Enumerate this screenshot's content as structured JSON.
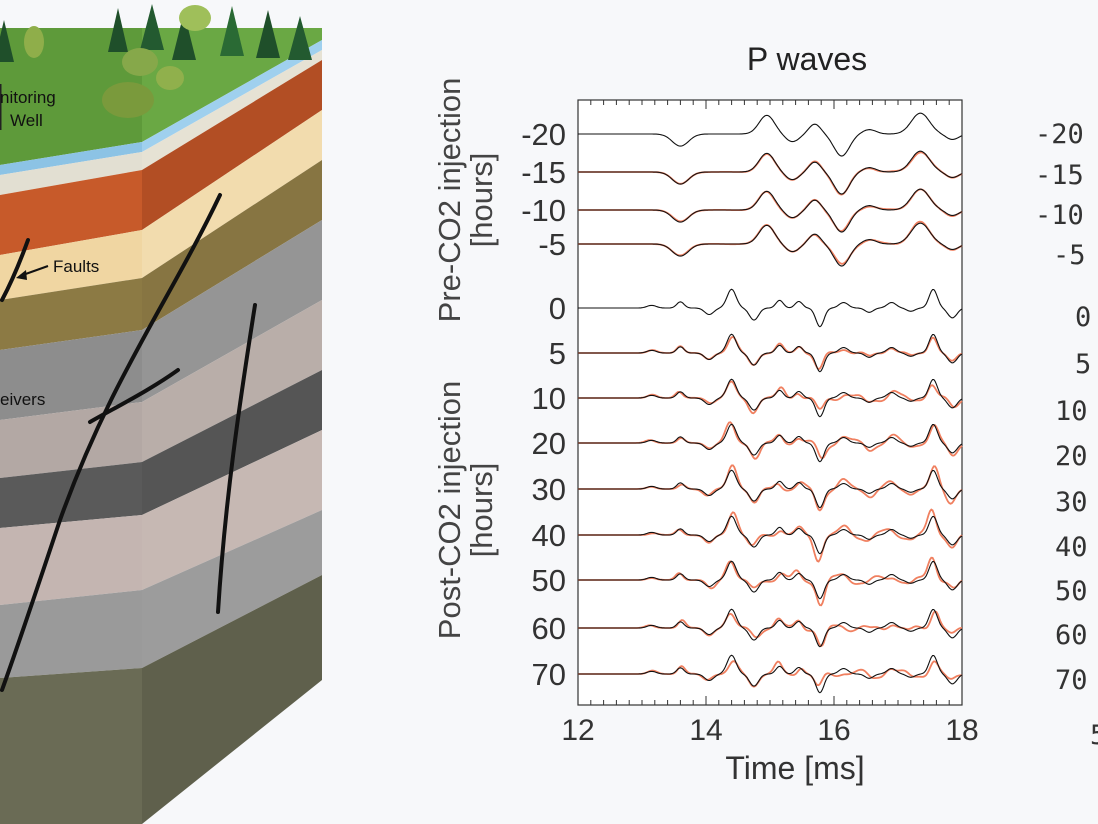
{
  "illustration": {
    "labels": {
      "monitoring_line1": "nitoring",
      "monitoring_line2": "Well",
      "faults": "Faults",
      "receivers": "eivers"
    }
  },
  "chart_data": {
    "type": "line",
    "title": "P waves",
    "xlabel": "Time [ms]",
    "xlim": [
      12,
      18
    ],
    "xticks": [
      12,
      14,
      16,
      18
    ],
    "ylabel_pre": "Pre-CO2 injection",
    "ylabel_pre_unit": "[hours]",
    "ylabel_post": "Post-CO2 injection",
    "ylabel_post_unit": "[hours]",
    "trace_labels": [
      "-20",
      "-15",
      "-10",
      "-5",
      "0",
      "5",
      "10",
      "20",
      "30",
      "40",
      "50",
      "60",
      "70"
    ],
    "colors": {
      "reference": "#111111",
      "modeled": "#f08060"
    },
    "pre_peaks": [
      [
        13.6,
        -0.55,
        0.18
      ],
      [
        14.95,
        0.85,
        0.17
      ],
      [
        15.35,
        -0.35,
        0.15
      ],
      [
        15.7,
        0.45,
        0.13
      ],
      [
        16.12,
        -1.0,
        0.17
      ],
      [
        16.55,
        0.2,
        0.15
      ],
      [
        17.35,
        0.95,
        0.2
      ],
      [
        17.85,
        -0.25,
        0.14
      ]
    ],
    "post_peaks": [
      [
        13.15,
        0.12,
        0.1
      ],
      [
        13.6,
        0.28,
        0.08
      ],
      [
        14.05,
        -0.3,
        0.1
      ],
      [
        14.4,
        0.85,
        0.1
      ],
      [
        14.75,
        -0.55,
        0.1
      ],
      [
        15.15,
        0.35,
        0.08
      ],
      [
        15.45,
        0.3,
        0.08
      ],
      [
        15.78,
        -0.85,
        0.09
      ],
      [
        16.15,
        0.25,
        0.1
      ],
      [
        16.55,
        -0.2,
        0.09
      ],
      [
        16.9,
        0.25,
        0.1
      ],
      [
        17.2,
        -0.15,
        0.09
      ],
      [
        17.55,
        0.85,
        0.09
      ],
      [
        17.85,
        -0.45,
        0.1
      ]
    ],
    "traces": [
      {
        "label": "-20",
        "reference": true,
        "modeled": false,
        "pert": 0.0
      },
      {
        "label": "-15",
        "reference": true,
        "modeled": true,
        "pert": 0.08
      },
      {
        "label": "-10",
        "reference": true,
        "modeled": true,
        "pert": 0.1
      },
      {
        "label": "-5",
        "reference": true,
        "modeled": true,
        "pert": 0.12
      },
      {
        "label": "0",
        "reference": true,
        "modeled": false,
        "pert": 0.0
      },
      {
        "label": "5",
        "reference": true,
        "modeled": true,
        "pert": 0.25
      },
      {
        "label": "10",
        "reference": true,
        "modeled": true,
        "pert": 0.45
      },
      {
        "label": "20",
        "reference": true,
        "modeled": true,
        "pert": 0.45
      },
      {
        "label": "30",
        "reference": true,
        "modeled": true,
        "pert": 0.5
      },
      {
        "label": "40",
        "reference": true,
        "modeled": true,
        "pert": 0.5
      },
      {
        "label": "50",
        "reference": true,
        "modeled": true,
        "pert": 0.55
      },
      {
        "label": "60",
        "reference": true,
        "modeled": true,
        "pert": 0.55
      },
      {
        "label": "70",
        "reference": true,
        "modeled": true,
        "pert": 0.6
      }
    ]
  },
  "right_panel": {
    "labels": [
      "-20",
      "-15",
      "-10",
      "-5",
      "0",
      "5",
      "10",
      "20",
      "30",
      "40",
      "50",
      "60",
      "70",
      "5"
    ]
  }
}
